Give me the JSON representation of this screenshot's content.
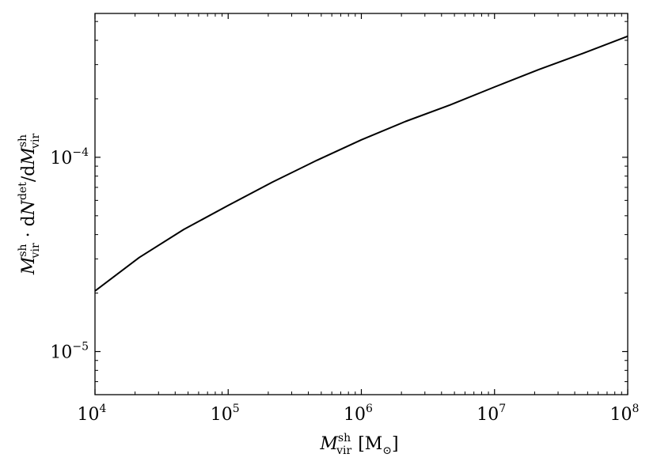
{
  "chart_data": {
    "type": "line",
    "title": "",
    "x_scale": "log",
    "y_scale": "log",
    "xlim": [
      10000,
      100000000
    ],
    "ylim": [
      6e-06,
      0.00055
    ],
    "grid": false,
    "xlabel": {
      "base": "M",
      "sup": "sh",
      "sub": "vir",
      "unit": "[M",
      "unit_sub": "⊙",
      "unit_close": "]"
    },
    "ylabel": {
      "part1_base": "M",
      "part1_sup": "sh",
      "part1_sub": "vir",
      "dot": " · d",
      "part2_base": "N",
      "part2_sup": "det",
      "slash": "/d",
      "part3_base": "M",
      "part3_sup": "sh",
      "part3_sub": "vir"
    },
    "x_ticks": [
      {
        "value": 10000,
        "base": "10",
        "exp": "4"
      },
      {
        "value": 100000,
        "base": "10",
        "exp": "5"
      },
      {
        "value": 1000000,
        "base": "10",
        "exp": "6"
      },
      {
        "value": 10000000,
        "base": "10",
        "exp": "7"
      },
      {
        "value": 100000000,
        "base": "10",
        "exp": "8"
      }
    ],
    "y_ticks": [
      {
        "value": 1e-05,
        "base": "10",
        "exp": "−5"
      },
      {
        "value": 0.0001,
        "base": "10",
        "exp": "−4"
      }
    ],
    "series": [
      {
        "color": "#000000",
        "x": [
          10000,
          21500,
          46400,
          100000,
          215000,
          464000,
          1000000,
          2150000,
          4640000,
          10000000,
          21500000,
          46400000,
          100000000
        ],
        "y": [
          2.05e-05,
          3.05e-05,
          4.25e-05,
          5.65e-05,
          7.45e-05,
          9.65e-05,
          0.000123,
          0.000153,
          0.000186,
          0.00023,
          0.000283,
          0.000343,
          0.00042
        ]
      }
    ]
  }
}
